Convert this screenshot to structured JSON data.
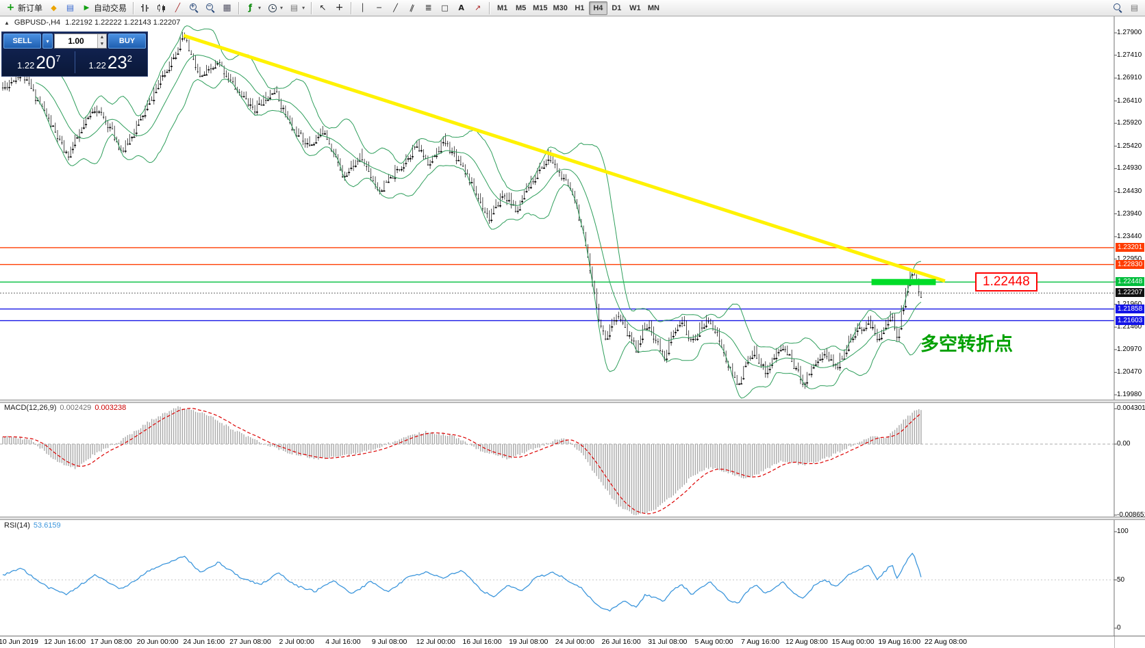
{
  "toolbar": {
    "new_order_label": "新订单",
    "autotrading_label": "自动交易",
    "timeframes": [
      "M1",
      "M5",
      "M15",
      "M30",
      "H1",
      "H4",
      "D1",
      "W1",
      "MN"
    ],
    "active_timeframe": "H4"
  },
  "icons": {
    "new-order-icon": "green-plus",
    "chart-window-icon": "orange-diamond",
    "data-window-icon": "blue-window",
    "autotrading-play-icon": "green-play-triangle",
    "bar-chart-icon": "ohlc-bars",
    "candlestick-icon": "candlesticks",
    "line-chart-icon": "diagonal-line",
    "zoom-in-icon": "magnifier-plus",
    "zoom-out-icon": "magnifier-minus",
    "tile-windows-icon": "grid",
    "indicators-icon": "function-f",
    "clock-icon": "clock-face",
    "template-icon": "document-grid",
    "cursor-icon": "arrow-pointer",
    "crosshair-icon": "plus-cross",
    "vertical-line-icon": "vertical-bar",
    "horizontal-line-icon": "horizontal-bar",
    "trendline-icon": "diagonal-line",
    "channel-icon": "parallel-lines",
    "fibonacci-icon": "stacked-lines",
    "shapes-icon": "square",
    "text-tool-icon": "letter-A",
    "arrow-tool-icon": "arrow-up-right",
    "chevron-down-icon": "small-caret",
    "search-icon": "magnifier",
    "up-triangle-icon": "small-up-triangle"
  },
  "symbol_header": {
    "symbol_period": "GBPUSD-,H4",
    "ohlc": "1.22192 1.22222 1.22143 1.22207"
  },
  "trade_panel": {
    "sell_label": "SELL",
    "buy_label": "BUY",
    "volume": "1.00",
    "sell_price": {
      "prefix": "1.22",
      "big": "20",
      "sup": "7"
    },
    "buy_price": {
      "prefix": "1.22",
      "big": "23",
      "sup": "2"
    }
  },
  "chart_data": {
    "type": "candlestick",
    "symbol": "GBPUSD-",
    "period": "H4",
    "price_axis": {
      "top_price": 1.279,
      "bottom_price": 1.1998,
      "ticks": [
        "1.27900",
        "1.27410",
        "1.26910",
        "1.26410",
        "1.25920",
        "1.25420",
        "1.24930",
        "1.24430",
        "1.23940",
        "1.23440",
        "1.22950",
        "1.22450",
        "1.21960",
        "1.21460",
        "1.20970",
        "1.20470",
        "1.19980"
      ]
    },
    "hlines": [
      {
        "price": 1.23201,
        "label": "1.23201",
        "color": "#FF3C00"
      },
      {
        "price": 1.2283,
        "label": "1.22830",
        "color": "#FF3C00"
      },
      {
        "price": 1.22448,
        "label": "1.22448",
        "color": "#00BE3C"
      },
      {
        "price": 1.21858,
        "label": "1.21858",
        "color": "#1414E6"
      },
      {
        "price": 1.21603,
        "label": "1.21603",
        "color": "#1414E6"
      }
    ],
    "bid": {
      "price": 1.22207,
      "label": "1.22207",
      "color": "#101010"
    },
    "trendline": {
      "t1": 0.197,
      "p1": 1.2784,
      "t2": 1.026,
      "p2": 1.2247,
      "color": "#FFF200",
      "width": 5
    },
    "highlight_zone": {
      "t1": 0.946,
      "t2": 1.016,
      "price": 1.22448,
      "thickness": 9,
      "color": "#00DC28"
    },
    "price_tag": {
      "text": "1.22448",
      "color": "#FF0000"
    },
    "callout": {
      "text": "多空转折点",
      "color": "#00A000"
    },
    "candles": {
      "count": 420,
      "seed": 11,
      "noise": 0.0009,
      "wick": 0.0011,
      "up_color": "#FFFFFF",
      "down_color": "#000000",
      "outline": "#000000"
    },
    "bollinger": {
      "period": 16,
      "deviation": 2,
      "color": "#2E9E5B"
    },
    "price_path": [
      [
        0,
        1.267
      ],
      [
        0.02,
        1.2705
      ],
      [
        0.045,
        1.262
      ],
      [
        0.07,
        1.252
      ],
      [
        0.1,
        1.263
      ],
      [
        0.115,
        1.259
      ],
      [
        0.13,
        1.253
      ],
      [
        0.155,
        1.262
      ],
      [
        0.175,
        1.27
      ],
      [
        0.197,
        1.2784
      ],
      [
        0.215,
        1.269
      ],
      [
        0.235,
        1.2725
      ],
      [
        0.255,
        1.2665
      ],
      [
        0.275,
        1.2625
      ],
      [
        0.295,
        1.267
      ],
      [
        0.315,
        1.258
      ],
      [
        0.335,
        1.2545
      ],
      [
        0.35,
        1.258
      ],
      [
        0.37,
        1.248
      ],
      [
        0.39,
        1.252
      ],
      [
        0.41,
        1.2445
      ],
      [
        0.43,
        1.249
      ],
      [
        0.45,
        1.2545
      ],
      [
        0.465,
        1.2505
      ],
      [
        0.48,
        1.2555
      ],
      [
        0.5,
        1.2505
      ],
      [
        0.515,
        1.244
      ],
      [
        0.53,
        1.2385
      ],
      [
        0.545,
        1.244
      ],
      [
        0.56,
        1.24
      ],
      [
        0.575,
        1.2465
      ],
      [
        0.595,
        1.252
      ],
      [
        0.61,
        1.247
      ],
      [
        0.622,
        1.244
      ],
      [
        0.632,
        1.235
      ],
      [
        0.64,
        1.226
      ],
      [
        0.648,
        1.218
      ],
      [
        0.656,
        1.212
      ],
      [
        0.668,
        1.218
      ],
      [
        0.678,
        1.214
      ],
      [
        0.69,
        1.21
      ],
      [
        0.7,
        1.2155
      ],
      [
        0.71,
        1.2125
      ],
      [
        0.72,
        1.208
      ],
      [
        0.73,
        1.213
      ],
      [
        0.74,
        1.216
      ],
      [
        0.75,
        1.211
      ],
      [
        0.76,
        1.2145
      ],
      [
        0.77,
        1.2165
      ],
      [
        0.78,
        1.212
      ],
      [
        0.79,
        1.206
      ],
      [
        0.8,
        1.202
      ],
      [
        0.81,
        1.207
      ],
      [
        0.82,
        1.209
      ],
      [
        0.83,
        1.205
      ],
      [
        0.84,
        1.208
      ],
      [
        0.85,
        1.2105
      ],
      [
        0.86,
        1.207
      ],
      [
        0.872,
        1.2025
      ],
      [
        0.884,
        1.207
      ],
      [
        0.896,
        1.209
      ],
      [
        0.908,
        1.206
      ],
      [
        0.92,
        1.211
      ],
      [
        0.932,
        1.214
      ],
      [
        0.944,
        1.216
      ],
      [
        0.952,
        1.212
      ],
      [
        0.96,
        1.215
      ],
      [
        0.968,
        1.217
      ],
      [
        0.974,
        1.213
      ],
      [
        0.98,
        1.219
      ],
      [
        0.986,
        1.224
      ],
      [
        0.991,
        1.2275
      ],
      [
        0.996,
        1.223
      ],
      [
        1,
        1.222
      ]
    ],
    "macd": {
      "label": "MACD(12,26,9)",
      "main_value": "0.002429",
      "signal_value": "0.003238",
      "axis_labels": [
        "0.004301",
        "0.00",
        "-0.008651"
      ],
      "max": 0.004301,
      "min": -0.008651,
      "histogram_color": "#A8A8A8",
      "signal_color": "#DC0000",
      "path": [
        [
          0,
          0.001
        ],
        [
          0.03,
          0.0005
        ],
        [
          0.06,
          -0.0022
        ],
        [
          0.08,
          -0.003
        ],
        [
          0.1,
          -0.0012
        ],
        [
          0.13,
          0.0005
        ],
        [
          0.16,
          0.0028
        ],
        [
          0.19,
          0.0045
        ],
        [
          0.22,
          0.0038
        ],
        [
          0.25,
          0.0018
        ],
        [
          0.28,
          0.0002
        ],
        [
          0.31,
          -0.001
        ],
        [
          0.34,
          -0.0018
        ],
        [
          0.37,
          -0.0015
        ],
        [
          0.4,
          -0.0008
        ],
        [
          0.43,
          0.0005
        ],
        [
          0.46,
          0.0015
        ],
        [
          0.49,
          0.001
        ],
        [
          0.52,
          -0.0008
        ],
        [
          0.55,
          -0.0018
        ],
        [
          0.58,
          -0.0005
        ],
        [
          0.61,
          0.0008
        ],
        [
          0.63,
          -0.001
        ],
        [
          0.65,
          -0.0045
        ],
        [
          0.67,
          -0.0075
        ],
        [
          0.69,
          -0.0087
        ],
        [
          0.71,
          -0.008
        ],
        [
          0.73,
          -0.0062
        ],
        [
          0.75,
          -0.004
        ],
        [
          0.77,
          -0.0028
        ],
        [
          0.79,
          -0.0035
        ],
        [
          0.81,
          -0.0042
        ],
        [
          0.83,
          -0.0032
        ],
        [
          0.85,
          -0.002
        ],
        [
          0.87,
          -0.0026
        ],
        [
          0.89,
          -0.002
        ],
        [
          0.91,
          -0.001
        ],
        [
          0.93,
          0.0002
        ],
        [
          0.95,
          0.001
        ],
        [
          0.96,
          0.0006
        ],
        [
          0.97,
          0.0015
        ],
        [
          0.98,
          0.0028
        ],
        [
          0.99,
          0.0038
        ],
        [
          1,
          0.0043
        ]
      ]
    },
    "rsi": {
      "label": "RSI(14)",
      "value": "53.6159",
      "axis_labels": [
        "100",
        "50",
        "0"
      ],
      "max": 100,
      "min": 0,
      "color": "#3C96DC",
      "path": [
        [
          0,
          55
        ],
        [
          0.02,
          62
        ],
        [
          0.05,
          42
        ],
        [
          0.07,
          35
        ],
        [
          0.1,
          55
        ],
        [
          0.13,
          40
        ],
        [
          0.16,
          60
        ],
        [
          0.197,
          75
        ],
        [
          0.215,
          58
        ],
        [
          0.235,
          68
        ],
        [
          0.26,
          52
        ],
        [
          0.28,
          45
        ],
        [
          0.3,
          57
        ],
        [
          0.32,
          44
        ],
        [
          0.34,
          38
        ],
        [
          0.36,
          50
        ],
        [
          0.38,
          35
        ],
        [
          0.4,
          48
        ],
        [
          0.42,
          38
        ],
        [
          0.44,
          52
        ],
        [
          0.46,
          58
        ],
        [
          0.48,
          52
        ],
        [
          0.5,
          60
        ],
        [
          0.52,
          40
        ],
        [
          0.535,
          32
        ],
        [
          0.55,
          45
        ],
        [
          0.565,
          38
        ],
        [
          0.58,
          52
        ],
        [
          0.6,
          58
        ],
        [
          0.615,
          50
        ],
        [
          0.63,
          42
        ],
        [
          0.645,
          25
        ],
        [
          0.66,
          18
        ],
        [
          0.675,
          28
        ],
        [
          0.69,
          22
        ],
        [
          0.7,
          35
        ],
        [
          0.72,
          28
        ],
        [
          0.73,
          40
        ],
        [
          0.74,
          45
        ],
        [
          0.75,
          35
        ],
        [
          0.77,
          48
        ],
        [
          0.79,
          30
        ],
        [
          0.8,
          25
        ],
        [
          0.81,
          38
        ],
        [
          0.82,
          45
        ],
        [
          0.83,
          35
        ],
        [
          0.84,
          42
        ],
        [
          0.85,
          48
        ],
        [
          0.86,
          38
        ],
        [
          0.872,
          30
        ],
        [
          0.884,
          45
        ],
        [
          0.896,
          50
        ],
        [
          0.908,
          42
        ],
        [
          0.92,
          55
        ],
        [
          0.932,
          60
        ],
        [
          0.944,
          65
        ],
        [
          0.952,
          50
        ],
        [
          0.96,
          58
        ],
        [
          0.968,
          66
        ],
        [
          0.974,
          52
        ],
        [
          0.98,
          62
        ],
        [
          0.986,
          72
        ],
        [
          0.991,
          78
        ],
        [
          0.996,
          65
        ],
        [
          1,
          53.6
        ]
      ]
    },
    "time_labels": [
      "10 Jun 2019",
      "12 Jun 16:00",
      "17 Jun 08:00",
      "20 Jun 00:00",
      "24 Jun 16:00",
      "27 Jun 08:00",
      "2 Jul 00:00",
      "4 Jul 16:00",
      "9 Jul 08:00",
      "12 Jul 00:00",
      "16 Jul 16:00",
      "19 Jul 08:00",
      "24 Jul 00:00",
      "26 Jul 16:00",
      "31 Jul 08:00",
      "5 Aug 00:00",
      "7 Aug 16:00",
      "12 Aug 08:00",
      "15 Aug 00:00",
      "19 Aug 16:00",
      "22 Aug 08:00"
    ]
  }
}
